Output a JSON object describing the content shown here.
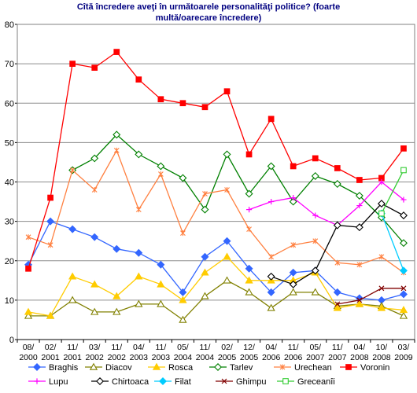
{
  "chart_data": {
    "type": "line",
    "title": "Cîtă încredere aveţi în următoarele personalităţi politice? (foarte multă/oarecare încredere)",
    "categories": [
      "08/2000",
      "02/2001",
      "11/2001",
      "03/2002",
      "11/2002",
      "04/2003",
      "11/2003",
      "05/2004",
      "11/2004",
      "02/2005",
      "12/2005",
      "04/2006",
      "11/2006",
      "05/2007",
      "11/2007",
      "04/2008",
      "10/2008",
      "03/2009"
    ],
    "ylim": [
      0,
      80
    ],
    "yticks": [
      0,
      10,
      20,
      30,
      40,
      50,
      60,
      70,
      80
    ],
    "grid": true,
    "legend": "bottom",
    "series": [
      {
        "name": "Braghis",
        "color": "#3366ff",
        "marker": "diamond-filled",
        "values": [
          19,
          30,
          28,
          26,
          23,
          22,
          19,
          12,
          21,
          25,
          18,
          12,
          17,
          17.5,
          12,
          10.5,
          10,
          11.5
        ]
      },
      {
        "name": "Diacov",
        "color": "#808000",
        "marker": "triangle-hollow",
        "values": [
          6,
          6,
          10,
          7,
          7,
          9,
          9,
          5,
          11,
          15,
          12,
          8,
          12,
          12,
          8.5,
          9,
          8.5,
          6
        ]
      },
      {
        "name": "Rosca",
        "color": "#ffcc00",
        "marker": "triangle-filled",
        "values": [
          7,
          6,
          16,
          14,
          11,
          16,
          14,
          10,
          17,
          21,
          15,
          15,
          15,
          17,
          8,
          9,
          8,
          7.5
        ]
      },
      {
        "name": "Tarlev",
        "color": "#008000",
        "marker": "diamond-hollow",
        "values": [
          null,
          null,
          43,
          46,
          52,
          47,
          44,
          41,
          33,
          47,
          37,
          44,
          35,
          41.5,
          39.5,
          36.5,
          31,
          24.5
        ]
      },
      {
        "name": "Urechean",
        "color": "#ff8040",
        "marker": "asterisk",
        "values": [
          26,
          24,
          43,
          38,
          48,
          33,
          42,
          27,
          37,
          38,
          28,
          21,
          24,
          25,
          19.5,
          19,
          21,
          17
        ]
      },
      {
        "name": "Voronin",
        "color": "#ff0000",
        "marker": "square-filled",
        "values": [
          18,
          36,
          70,
          69,
          73,
          66,
          61,
          60,
          59,
          63,
          47,
          56,
          44,
          46,
          43.5,
          40.5,
          41,
          48.5
        ]
      },
      {
        "name": "Lupu",
        "color": "#ff00ff",
        "marker": "plus",
        "values": [
          null,
          null,
          null,
          null,
          null,
          null,
          null,
          null,
          null,
          null,
          33,
          35,
          36,
          31.5,
          29,
          34,
          40,
          35.5
        ]
      },
      {
        "name": "Chirtoaca",
        "color": "#000000",
        "marker": "diamond-hollow",
        "values": [
          null,
          null,
          null,
          null,
          null,
          null,
          null,
          null,
          null,
          null,
          null,
          16,
          14,
          17.5,
          29,
          28.5,
          34.5,
          31.5
        ]
      },
      {
        "name": "Filat",
        "color": "#00ccff",
        "marker": "diamond-filled",
        "values": [
          null,
          null,
          null,
          null,
          null,
          null,
          null,
          null,
          null,
          null,
          null,
          null,
          null,
          null,
          null,
          null,
          32,
          17.5
        ]
      },
      {
        "name": "Ghimpu",
        "color": "#800000",
        "marker": "cross",
        "values": [
          null,
          null,
          null,
          null,
          null,
          null,
          null,
          null,
          null,
          null,
          null,
          null,
          null,
          null,
          9,
          10,
          13,
          13
        ]
      },
      {
        "name": "Greceanîi",
        "color": "#33cc33",
        "marker": "square-hollow",
        "values": [
          null,
          null,
          null,
          null,
          null,
          null,
          null,
          null,
          null,
          null,
          null,
          null,
          null,
          null,
          null,
          null,
          32,
          43
        ]
      }
    ]
  }
}
